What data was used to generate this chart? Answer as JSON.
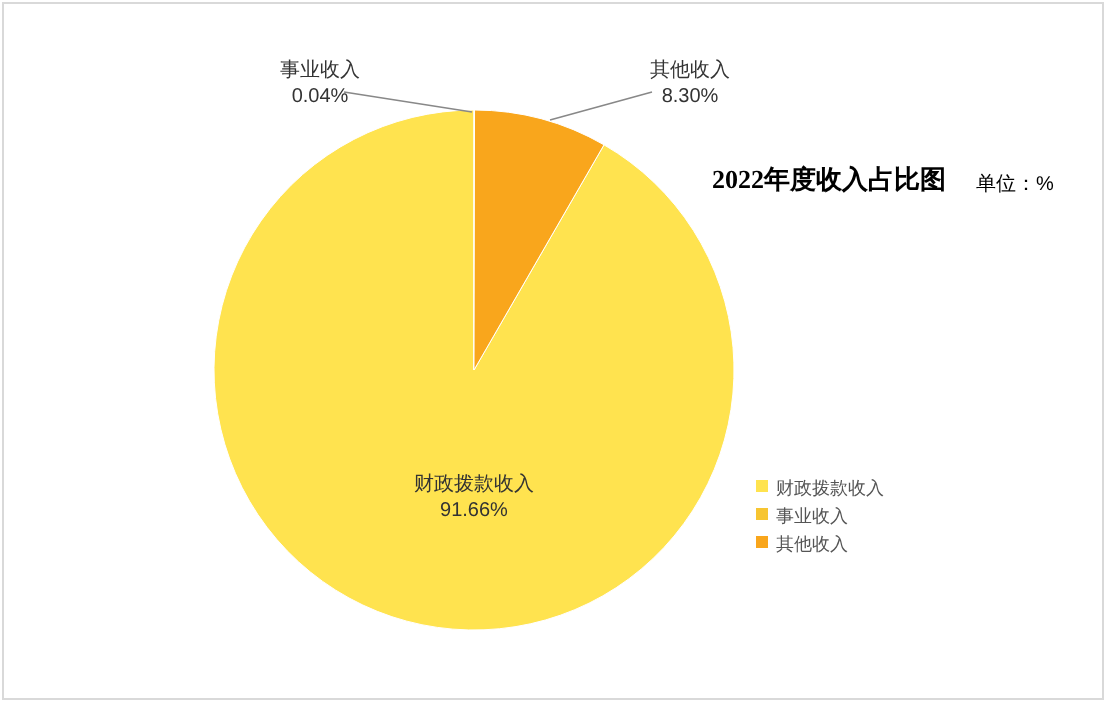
{
  "chart_data": {
    "type": "pie",
    "title": "2022年度收入占比图",
    "annotations": [
      "单位：%"
    ],
    "categories": [
      "财政拨款收入",
      "事业收入",
      "其他收入"
    ],
    "values": [
      91.66,
      0.04,
      8.3
    ],
    "colors": [
      "#ffe34f",
      "#f7c531",
      "#f9a61c"
    ],
    "value_labels": [
      "91.66%",
      "0.04%",
      "8.30%"
    ],
    "legend": "right"
  }
}
